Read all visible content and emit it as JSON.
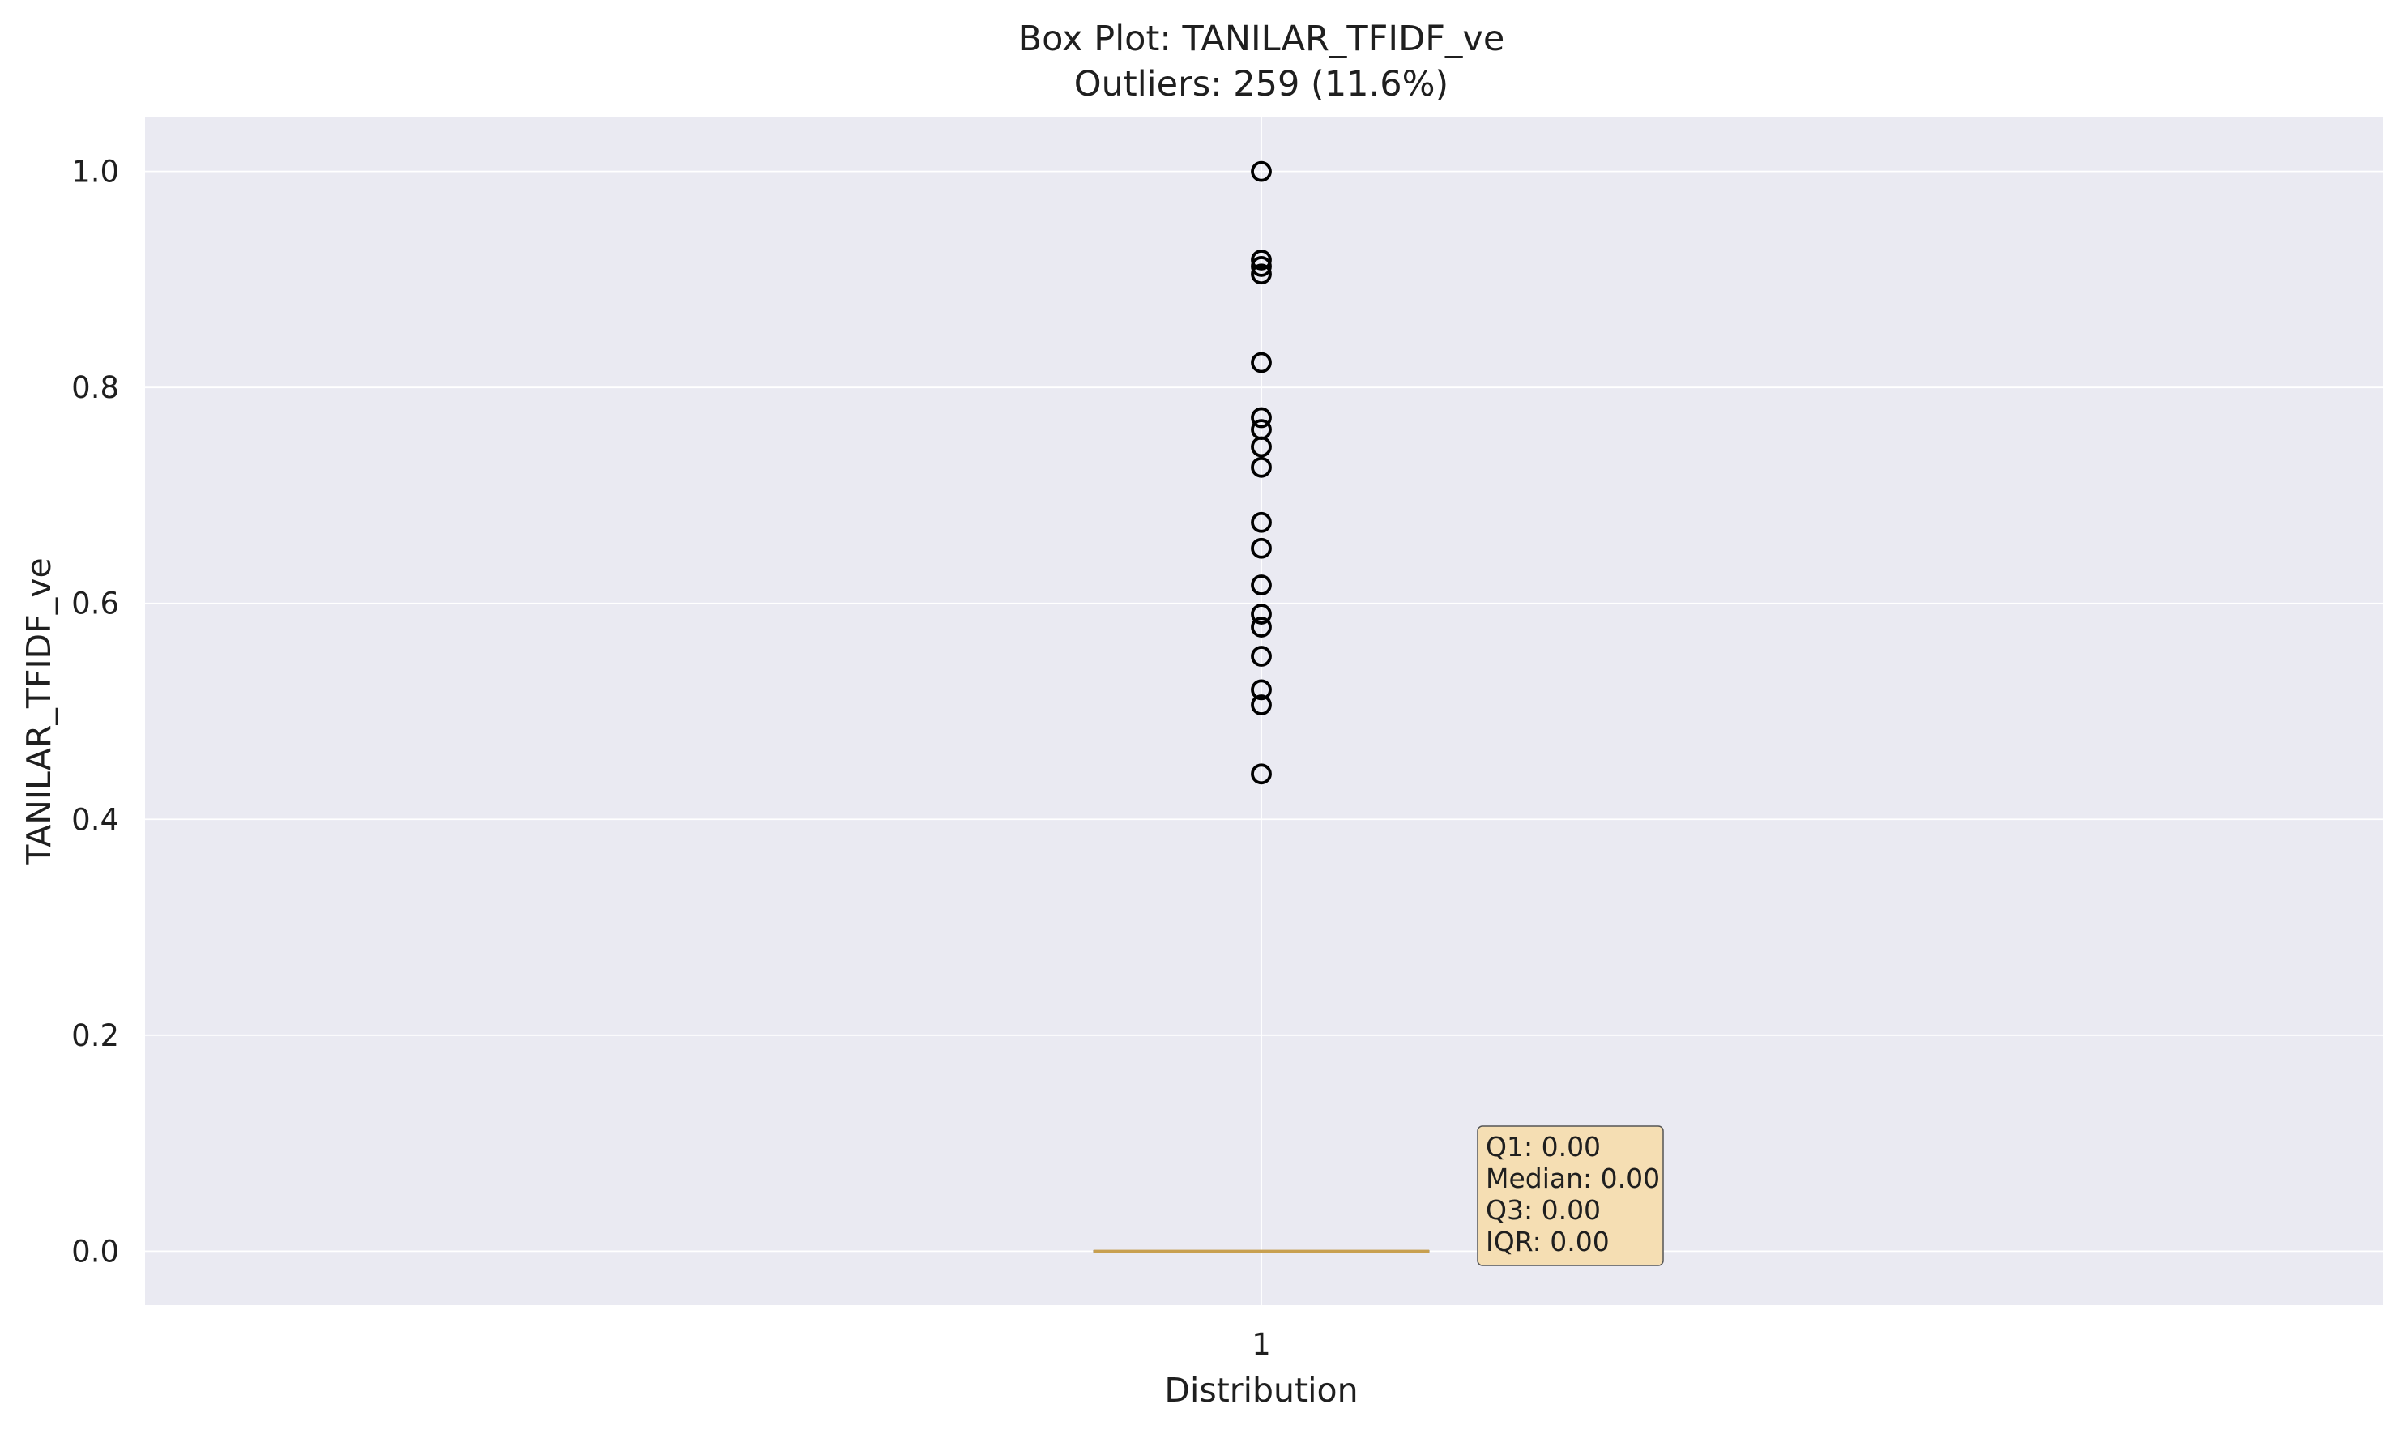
{
  "chart_data": {
    "type": "box",
    "title": "Box Plot: TANILAR_TFIDF_ve",
    "subtitle": "Outliers: 259 (11.6%)",
    "xlabel": "Distribution",
    "ylabel": "TANILAR_TFIDF_ve",
    "categories": [
      "1"
    ],
    "ylim": [
      -0.05,
      1.05
    ],
    "yticks": [
      0.0,
      0.2,
      0.4,
      0.6,
      0.8,
      1.0
    ],
    "ytick_labels": [
      "0.0",
      "0.2",
      "0.4",
      "0.6",
      "0.8",
      "1.0"
    ],
    "grid": true,
    "box": {
      "q1": 0.0,
      "median": 0.0,
      "q3": 0.0,
      "whisker_low": 0.0,
      "whisker_high": 0.0
    },
    "outliers": [
      1.0,
      0.918,
      0.912,
      0.905,
      0.823,
      0.772,
      0.761,
      0.745,
      0.726,
      0.675,
      0.651,
      0.617,
      0.59,
      0.578,
      0.551,
      0.52,
      0.506,
      0.442
    ],
    "stats_box": [
      "Q1: 0.00",
      "Median: 0.00",
      "Q3: 0.00",
      "IQR: 0.00"
    ],
    "colors": {
      "plot_bg": "#eaeaf2",
      "grid": "#ffffff",
      "median": "#c8a050",
      "outlier": "#000000",
      "stats_bg": "#f5deb3"
    }
  }
}
